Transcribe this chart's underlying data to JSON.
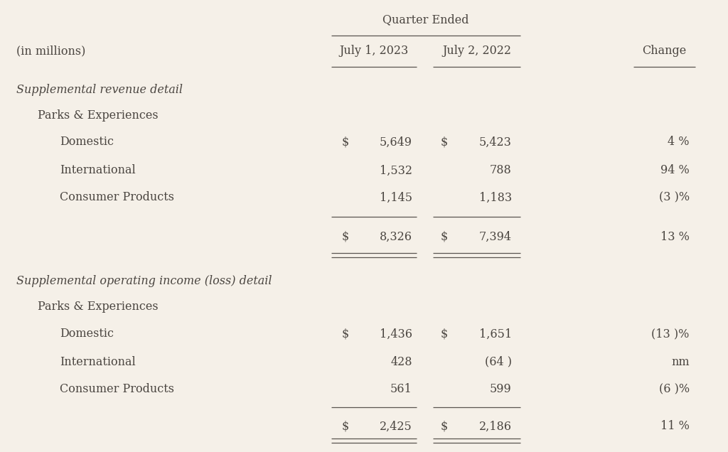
{
  "bg_color": "#f5f0e8",
  "text_color": "#4a4540",
  "title": "Quarter Ended",
  "col_header_in_millions": "(in millions)",
  "col_header_date1": "July 1, 2023",
  "col_header_date2": "July 2, 2022",
  "col_header_change": "Change",
  "section1_label": "Supplemental revenue detail",
  "section1_sub1": "Parks & Experiences",
  "section1_rows": [
    {
      "label": "Domestic",
      "v1": "5,649",
      "v2": "5,423",
      "ch": "4 %",
      "dollar1": true,
      "dollar2": true
    },
    {
      "label": "International",
      "v1": "1,532",
      "v2": "788",
      "ch": "94 %",
      "dollar1": false,
      "dollar2": false
    },
    {
      "label": "Consumer Products",
      "v1": "1,145",
      "v2": "1,183",
      "ch": "(3 )%",
      "dollar1": false,
      "dollar2": false
    }
  ],
  "section1_total": {
    "v1": "8,326",
    "v2": "7,394",
    "ch": "13 %"
  },
  "section2_label": "Supplemental operating income (loss) detail",
  "section2_sub1": "Parks & Experiences",
  "section2_rows": [
    {
      "label": "Domestic",
      "v1": "1,436",
      "v2": "1,651",
      "ch": "(13 )%",
      "dollar1": true,
      "dollar2": true
    },
    {
      "label": "International",
      "v1": "428",
      "v2": "(64 )",
      "ch": "nm",
      "dollar1": false,
      "dollar2": false
    },
    {
      "label": "Consumer Products",
      "v1": "561",
      "v2": "599",
      "ch": "(6 )%",
      "dollar1": false,
      "dollar2": false
    }
  ],
  "section2_total": {
    "v1": "2,425",
    "v2": "2,186",
    "ch": "11 %"
  },
  "font_size": 11.5,
  "line_color": "#5a5550"
}
